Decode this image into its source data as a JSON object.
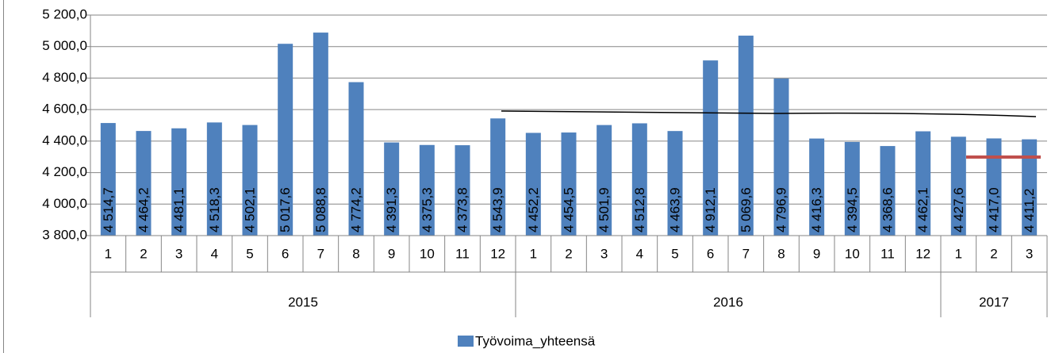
{
  "chart_data": {
    "type": "bar",
    "categories": [
      "1",
      "2",
      "3",
      "4",
      "5",
      "6",
      "7",
      "8",
      "9",
      "10",
      "11",
      "12",
      "1",
      "2",
      "3",
      "4",
      "5",
      "6",
      "7",
      "8",
      "9",
      "10",
      "11",
      "12",
      "1",
      "2",
      "3"
    ],
    "groups": [
      {
        "name": "2015",
        "size": 12
      },
      {
        "name": "2016",
        "size": 12
      },
      {
        "name": "2017",
        "size": 3
      }
    ],
    "series": [
      {
        "name": "Työvoima_yhteensä",
        "color": "#4f81bd",
        "values": [
          4514.7,
          4464.2,
          4481.1,
          4518.3,
          4502.1,
          5017.6,
          5088.8,
          4774.2,
          4391.3,
          4375.3,
          4373.8,
          4543.9,
          4452.2,
          4454.5,
          4501.9,
          4512.8,
          4463.9,
          4912.1,
          5069.6,
          4796.9,
          4416.3,
          4394.5,
          4368.6,
          4462.1,
          4427.6,
          4417.0,
          4411.2
        ],
        "value_labels": [
          "4 514,7",
          "4 464,2",
          "4 481,1",
          "4 518,3",
          "4 502,1",
          "5 017,6",
          "5 088,8",
          "4 774,2",
          "4 391,3",
          "4 375,3",
          "4 373,8",
          "4 543,9",
          "4 452,2",
          "4 454,5",
          "4 501,9",
          "4 512,8",
          "4 463,9",
          "4 912,1",
          "5 069,6",
          "4 796,9",
          "4 416,3",
          "4 394,5",
          "4 368,6",
          "4 462,1",
          "4 427,6",
          "4 417,0",
          "4 411,2"
        ]
      }
    ],
    "ylim": [
      3800,
      5200
    ],
    "yticks": [
      {
        "value": 3800,
        "label": "3 800,0"
      },
      {
        "value": 4000,
        "label": "4 000,0"
      },
      {
        "value": 4200,
        "label": "4 200,0"
      },
      {
        "value": 4400,
        "label": "4 400,0"
      },
      {
        "value": 4600,
        "label": "4 600,0"
      },
      {
        "value": 4800,
        "label": "4 800,0"
      },
      {
        "value": 5000,
        "label": "5 000,0"
      },
      {
        "value": 5200,
        "label": "5 200,0"
      }
    ],
    "grid": true,
    "legend": "bottom"
  }
}
